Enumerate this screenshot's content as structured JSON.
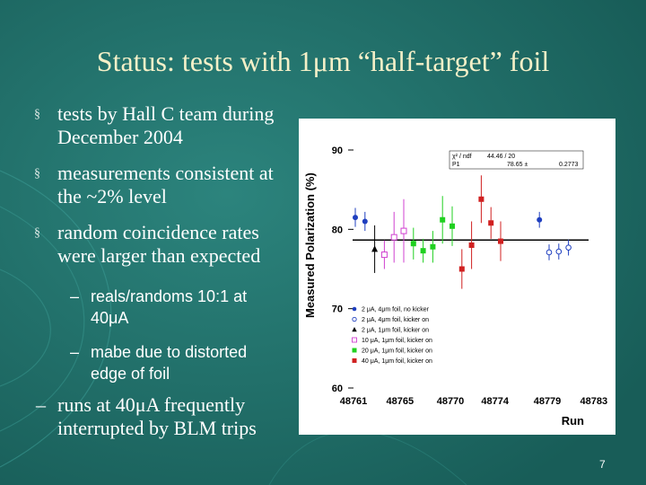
{
  "slide": {
    "title": "Status: tests with 1μm “half-target” foil",
    "page_number": "7",
    "bullets": [
      {
        "text": "tests by Hall C team during December 2004",
        "marker": "§"
      },
      {
        "text": "measurements consistent at the ~2% level",
        "marker": "§"
      },
      {
        "text": "random coincidence rates were larger than expected",
        "marker": "§"
      }
    ],
    "sub_bullets": [
      {
        "text": "reals/randoms 10:1 at 40μA",
        "marker": "–"
      },
      {
        "text": "mabe due to distorted edge of foil",
        "marker": "–"
      }
    ],
    "bottom_bullet": {
      "text": "runs at 40μA frequently interrupted by BLM trips",
      "marker": "–"
    }
  },
  "chart_data": {
    "type": "scatter",
    "xlabel": "Run",
    "ylabel": "Measured Polarization (%)",
    "ylim": [
      60,
      90
    ],
    "xticks": [
      "48761",
      "48765",
      "48770",
      "48774",
      "48779",
      "48783"
    ],
    "yticks": [
      "60",
      "70",
      "80",
      "90"
    ],
    "stats_box": {
      "line1_label": "χ² / ndf",
      "line1_value": "44.46  /  20",
      "line2_label": "P1",
      "line2_value": "78.65 ±",
      "line2_error": "0.2773"
    },
    "fit_value": 78.65,
    "series": [
      {
        "name": "2 μA, 4μm foil, no kicker",
        "color": "#1f3fbf",
        "marker": "circle",
        "points": [
          {
            "i": 0,
            "y": 81.5,
            "err": 1.2
          },
          {
            "i": 1,
            "y": 81.0,
            "err": 1.2
          },
          {
            "i": 19,
            "y": 81.2,
            "err": 1.0
          }
        ]
      },
      {
        "name": "2 μA, 4μm foil, kicker on",
        "color": "#1f3fbf",
        "marker": "open-circle",
        "points": [
          {
            "i": 20,
            "y": 77.1,
            "err": 1.0
          },
          {
            "i": 21,
            "y": 77.2,
            "err": 1.0
          },
          {
            "i": 22,
            "y": 77.7,
            "err": 1.0
          }
        ]
      },
      {
        "name": "2 μA, 1μm foil, kicker on",
        "color": "#000000",
        "marker": "triangle",
        "points": [
          {
            "i": 2,
            "y": 77.5,
            "err": 3.0
          }
        ]
      },
      {
        "name": "10 μA, 1μm foil, kicker on",
        "color": "#d040d0",
        "marker": "open-square",
        "points": [
          {
            "i": 3,
            "y": 76.8,
            "err": 1.8
          },
          {
            "i": 4,
            "y": 79.0,
            "err": 3.2
          },
          {
            "i": 5,
            "y": 79.8,
            "err": 4.0
          }
        ]
      },
      {
        "name": "20 μA, 1μm foil, kicker on",
        "color": "#20d020",
        "marker": "square",
        "points": [
          {
            "i": 6,
            "y": 78.2,
            "err": 2.0
          },
          {
            "i": 7,
            "y": 77.3,
            "err": 1.5
          },
          {
            "i": 8,
            "y": 77.8,
            "err": 2.0
          },
          {
            "i": 9,
            "y": 81.2,
            "err": 3.0
          },
          {
            "i": 10,
            "y": 80.4,
            "err": 2.5
          }
        ]
      },
      {
        "name": "40 μA, 1μm foil, kicker on",
        "color": "#d02020",
        "marker": "square",
        "points": [
          {
            "i": 11,
            "y": 75.0,
            "err": 2.5
          },
          {
            "i": 12,
            "y": 78.0,
            "err": 3.0
          },
          {
            "i": 13,
            "y": 83.8,
            "err": 3.0
          },
          {
            "i": 14,
            "y": 80.8,
            "err": 2.0
          },
          {
            "i": 15,
            "y": 78.5,
            "err": 2.5
          }
        ]
      }
    ]
  }
}
